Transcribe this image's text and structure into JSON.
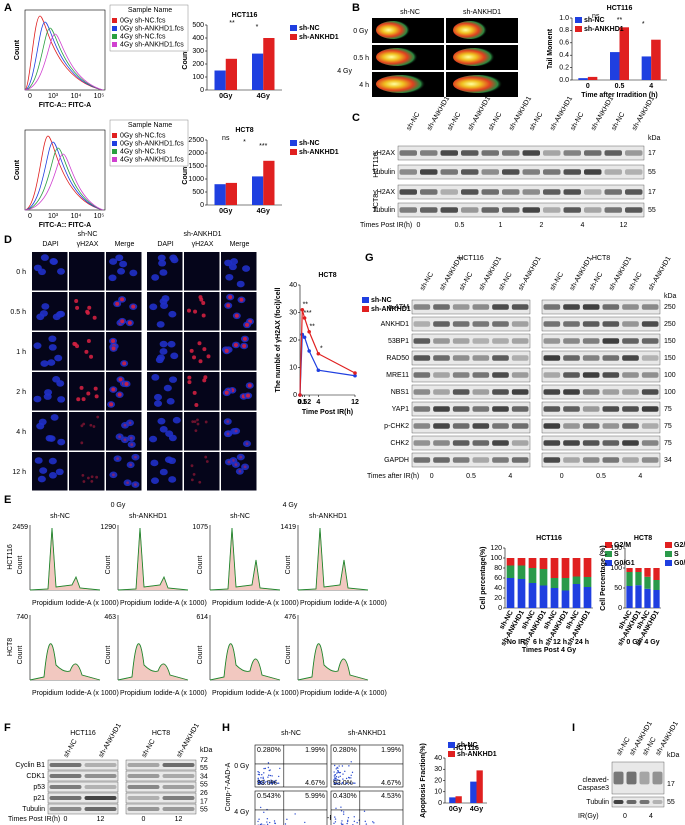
{
  "labels": {
    "a": "A",
    "b": "B",
    "c": "C",
    "d": "D",
    "e": "E",
    "f": "F",
    "g": "G",
    "h": "H",
    "i": "I"
  },
  "chart_data": [
    {
      "type": "bar",
      "title": "HCT116",
      "y_label": "Counts",
      "categories": [
        "0Gy",
        "4Gy"
      ],
      "series": [
        {
          "name": "sh-NC",
          "color": "#1f3fe0",
          "values": [
            150,
            280
          ]
        },
        {
          "name": "sh-ANKHD1",
          "color": "#e02020",
          "values": [
            240,
            400
          ]
        }
      ],
      "ylim": [
        0,
        500
      ],
      "yticks": [
        0,
        100,
        200,
        300,
        400,
        500
      ],
      "annotations": [
        "**",
        "*"
      ]
    },
    {
      "type": "bar",
      "title": "HCT8",
      "y_label": "Counts",
      "categories": [
        "0Gy",
        "4Gy"
      ],
      "series": [
        {
          "name": "sh-NC",
          "color": "#1f3fe0",
          "values": [
            800,
            1100
          ]
        },
        {
          "name": "sh-ANKHD1",
          "color": "#e02020",
          "values": [
            850,
            1700
          ]
        }
      ],
      "ylim": [
        0,
        2500
      ],
      "yticks": [
        0,
        500,
        1000,
        1500,
        2000,
        2500
      ],
      "annotations": [
        "ns",
        "*",
        "***"
      ]
    },
    {
      "type": "bar",
      "title": "HCT116",
      "y_label": "Tail Moment",
      "x_label": "Time after Irradition (h)",
      "categories": [
        "0",
        "0.5",
        "4"
      ],
      "series": [
        {
          "name": "sh-NC",
          "color": "#1f3fe0",
          "values": [
            0.03,
            0.45,
            0.38
          ]
        },
        {
          "name": "sh-ANKHD1",
          "color": "#e02020",
          "values": [
            0.05,
            0.85,
            0.65
          ]
        }
      ],
      "ylim": [
        0,
        1.0
      ],
      "yticks": [
        {
          "value": 0,
          "label": "0.0"
        },
        {
          "value": 0.2,
          "label": "0.2"
        },
        {
          "value": 0.4,
          "label": "0.4"
        },
        {
          "value": 0.6,
          "label": "0.6"
        },
        {
          "value": 0.8,
          "label": "0.8"
        },
        {
          "value": 1,
          "label": "1.0"
        }
      ],
      "annotations": [
        "ns",
        "**",
        "*"
      ]
    },
    {
      "type": "line",
      "title": "HCT8",
      "y_label": "The numble of γH2AX (foci)/cell",
      "x_label": "Time Post IR(h)",
      "x": [
        0,
        0.5,
        1,
        2,
        4,
        12
      ],
      "series": [
        {
          "name": "sh-NC",
          "color": "#1f3fe0",
          "values": [
            0,
            22,
            21,
            16,
            9,
            7
          ]
        },
        {
          "name": "sh-ANKHD1",
          "color": "#e02020",
          "values": [
            0,
            31,
            28,
            23,
            15,
            8
          ]
        }
      ],
      "xlim": [
        0,
        12
      ],
      "xticks": [
        0,
        0.5,
        1,
        2,
        4,
        12
      ],
      "ylim": [
        0,
        40
      ],
      "yticks": [
        0,
        10,
        20,
        30,
        40
      ],
      "annotations": [
        "**",
        "***",
        "**",
        "*"
      ]
    },
    {
      "type": "stacked",
      "title": "HCT116",
      "y_label": "Cell percentage(%)",
      "x_label": "Times Post 4 Gy",
      "groups": [
        "No IR",
        "6 h",
        "12 h",
        "24 h"
      ],
      "categories": [
        "sh-NC",
        "sh-ANKHD1",
        "sh-NC",
        "sh-ANKHD1",
        "sh-NC",
        "sh-ANKHD1",
        "sh-NC",
        "sh-ANKHD1"
      ],
      "series": [
        {
          "name": "G0/G1",
          "color": "#1f3fe0",
          "values": [
            60,
            58,
            50,
            45,
            40,
            35,
            48,
            42
          ]
        },
        {
          "name": "S",
          "color": "#2a9a4a",
          "values": [
            25,
            27,
            30,
            33,
            20,
            25,
            15,
            20
          ]
        },
        {
          "name": "G2/M",
          "color": "#e02020",
          "values": [
            15,
            15,
            20,
            22,
            40,
            40,
            37,
            38
          ]
        }
      ],
      "ylim": [
        0,
        120
      ],
      "yticks": [
        0,
        20,
        40,
        60,
        80,
        100,
        120
      ]
    },
    {
      "type": "stacked",
      "title": "HCT8",
      "y_label": "Cell Percentage (%)",
      "groups": [
        "0 Gy",
        "4 Gy"
      ],
      "categories": [
        "sh-NC",
        "sh-ANKHD1",
        "sh-NC",
        "sh-ANKHD1"
      ],
      "series": [
        {
          "name": "G0/G1",
          "color": "#1f3fe0",
          "values": [
            55,
            57,
            48,
            45
          ]
        },
        {
          "name": "S",
          "color": "#2a9a4a",
          "values": [
            35,
            33,
            30,
            25
          ]
        },
        {
          "name": "G2/M",
          "color": "#e02020",
          "values": [
            10,
            10,
            22,
            30
          ]
        }
      ],
      "ylim": [
        0,
        150
      ],
      "yticks": [
        0,
        50,
        100,
        150
      ]
    },
    {
      "type": "bar",
      "title": "HCT116",
      "y_label": "Apoptosis Fraction(%)",
      "categories": [
        "0Gy",
        "4Gy"
      ],
      "series": [
        {
          "name": "sh-NC",
          "color": "#1f3fe0",
          "values": [
            5,
            19
          ]
        },
        {
          "name": "sh-ANKHD1",
          "color": "#e02020",
          "values": [
            6,
            29
          ]
        }
      ],
      "ylim": [
        0,
        40
      ],
      "yticks": [
        0,
        10,
        20,
        30,
        40
      ]
    }
  ],
  "a": {
    "histograms": [
      {
        "legend_title": "Sample Name",
        "legend": [
          "0Gy sh-NC.fcs",
          "0Gy sh-ANKHD1.fcs",
          "4Gy sh-NC.fcs",
          "4Gy sh-ANKHD1.fcs"
        ]
      },
      {
        "legend_title": "Sample Name",
        "legend": [
          "0Gy sh-NC.fcs",
          "0Gy sh-ANKHD1.fcs",
          "4Gy sh-NC.fcs",
          "4Gy sh-ANKHD1.fcs"
        ]
      }
    ],
    "x_label": "FITC-A:: FITC-A",
    "y_label": "Count",
    "x_ticks": [
      "0",
      "10³",
      "10⁴",
      "10⁵"
    ]
  },
  "b": {
    "columns": [
      "sh-NC",
      "sh-ANKHD1"
    ],
    "doses": [
      "0 Gy",
      "4 Gy"
    ],
    "times": [
      "0.5 h",
      "4 h"
    ]
  },
  "c": {
    "lanes": [
      "sh-NC",
      "sh-ANKHD1",
      "sh-NC",
      "sh-ANKHD1",
      "sh-NC",
      "sh-ANKHD1",
      "sh-NC",
      "sh-ANKHD1",
      "sh-NC",
      "sh-ANKHD1",
      "sh-NC",
      "sh-ANKHD1"
    ],
    "cell_lines": [
      "HCT116",
      "HCT8"
    ],
    "rows": [
      {
        "name": "γH2AX",
        "kda": "17"
      },
      {
        "name": "Tubulin",
        "kda": "55"
      },
      {
        "name": "γH2AX",
        "kda": "17"
      },
      {
        "name": "Tubulin",
        "kda": "55"
      }
    ],
    "kda": "kDa",
    "x_title": "Times Post IR(h)",
    "times": [
      "0",
      "0.5",
      "1",
      "2",
      "4",
      "12"
    ]
  },
  "d": {
    "groups": [
      "sh-NC",
      "sh-ANKHD1"
    ],
    "channels": [
      "DAPI",
      "γH2AX",
      "Merge",
      "DAPI",
      "γH2AX",
      "Merge"
    ],
    "times": [
      "0 h",
      "0.5 h",
      "1 h",
      "2 h",
      "4 h",
      "12 h"
    ]
  },
  "e": {
    "doses": [
      "0 Gy",
      "4 Gy"
    ],
    "columns": [
      "sh-NC",
      "sh-ANKHD1",
      "sh-NC",
      "sh-ANKHD1"
    ],
    "cell_lines": [
      "HCT116",
      "HCT8"
    ],
    "x_label": "Propidium Iodide-A (x 1000)",
    "y_label": "Count",
    "ymax": [
      [
        "2459",
        "1290",
        "1075",
        "1419"
      ],
      [
        "740",
        "463",
        "614",
        "476"
      ]
    ]
  },
  "f": {
    "lanes": [
      "sh-NC",
      "sh-ANKHD1",
      "sh-NC",
      "sh-ANKHD1"
    ],
    "cell_lines": [
      "HCT116",
      "HCT8"
    ],
    "rows": [
      "Cyclin B1",
      "CDK1",
      "p53",
      "p21",
      "Tubulin"
    ],
    "markers": [
      "72",
      "55",
      "34",
      "55",
      "26",
      "17",
      "55"
    ],
    "kda": "kDa",
    "x_title": "Times Post IR(h)",
    "times": [
      "0",
      "12",
      "0",
      "12"
    ]
  },
  "g": {
    "lanes": [
      "sh-NC",
      "sh-ANKHD1",
      "sh-NC",
      "sh-ANKHD1",
      "sh-NC",
      "sh-ANKHD1",
      "sh-NC",
      "sh-ANKHD1",
      "sh-NC",
      "sh-ANKHD1",
      "sh-NC",
      "sh-ANKHD1"
    ],
    "cell_lines": [
      "HCT116",
      "HCT8"
    ],
    "rows": [
      {
        "name": "p-ATM",
        "kda": "250"
      },
      {
        "name": "ANKHD1",
        "kda": "250"
      },
      {
        "name": "53BP1",
        "kda": "150"
      },
      {
        "name": "RAD50",
        "kda": "150"
      },
      {
        "name": "MRE11",
        "kda": "100"
      },
      {
        "name": "NBS1",
        "kda": "100"
      },
      {
        "name": "YAP1",
        "kda": "75"
      },
      {
        "name": "p-CHK2",
        "kda": "75"
      },
      {
        "name": "CHK2",
        "kda": "75"
      },
      {
        "name": "GAPDH",
        "kda": "34"
      }
    ],
    "kda": "kDa",
    "x_title": "Times after IR(h)",
    "times": [
      "0",
      "0.5",
      "4",
      "0",
      "0.5",
      "4"
    ]
  },
  "h": {
    "columns": [
      "sh-NC",
      "sh-ANKHD1"
    ],
    "doses": [
      "0 Gy",
      "4 Gy"
    ],
    "quadrants": [
      [
        [
          "0.280%",
          "1.99%",
          "93.0%",
          "4.67%"
        ],
        [
          "0.280%",
          "1.99%",
          "93.0%",
          "4.67%"
        ]
      ],
      [
        [
          "0.543%",
          "5.99%",
          "77.4%",
          "16.1%"
        ],
        [
          "0.430%",
          "4.53%",
          "66.7%",
          "28.4%"
        ]
      ]
    ],
    "y_label": "Comp-7-AAD-A",
    "x_label": "Comp-PE-A"
  },
  "i": {
    "lanes": [
      "sh-NC",
      "sh-ANKHD1",
      "sh-NC",
      "sh-ANKHD1"
    ],
    "rows": [
      {
        "name_lines": [
          "cleaved-",
          "Caspase3"
        ],
        "kda": "17"
      },
      {
        "name_lines": [
          "Tubulin"
        ],
        "kda": "55"
      }
    ],
    "kda": "kDa",
    "x_title": "IR(Gy)",
    "doses": [
      "0",
      "4"
    ]
  }
}
